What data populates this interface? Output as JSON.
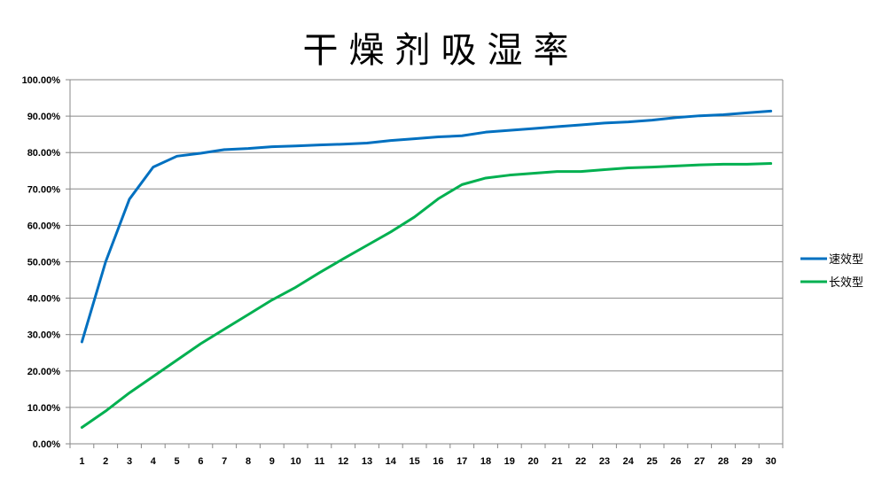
{
  "chart_data": {
    "type": "line",
    "title": "干燥剂吸湿率",
    "xlabel": "",
    "ylabel": "",
    "x": [
      1,
      2,
      3,
      4,
      5,
      6,
      7,
      8,
      9,
      10,
      11,
      12,
      13,
      14,
      15,
      16,
      17,
      18,
      19,
      20,
      21,
      22,
      23,
      24,
      25,
      26,
      27,
      28,
      29,
      30
    ],
    "ylim": [
      0,
      100
    ],
    "y_ticks": [
      "0.00%",
      "10.00%",
      "20.00%",
      "30.00%",
      "40.00%",
      "50.00%",
      "60.00%",
      "70.00%",
      "80.00%",
      "90.00%",
      "100.00%"
    ],
    "grid": true,
    "legend_position": "right",
    "series": [
      {
        "name": "速效型",
        "color": "#0070C0",
        "values": [
          28.0,
          50.0,
          67.2,
          76.0,
          79.0,
          79.8,
          80.8,
          81.1,
          81.6,
          81.8,
          82.1,
          82.3,
          82.6,
          83.3,
          83.8,
          84.3,
          84.6,
          85.6,
          86.1,
          86.6,
          87.1,
          87.6,
          88.1,
          88.4,
          88.9,
          89.6,
          90.1,
          90.4,
          90.9,
          91.4
        ]
      },
      {
        "name": "长效型",
        "color": "#00B050",
        "values": [
          4.5,
          9.0,
          14.0,
          18.5,
          23.0,
          27.5,
          31.5,
          35.5,
          39.5,
          43.0,
          47.0,
          50.8,
          54.5,
          58.2,
          62.3,
          67.3,
          71.2,
          73.0,
          73.8,
          74.3,
          74.8,
          74.8,
          75.3,
          75.8,
          76.0,
          76.3,
          76.6,
          76.8,
          76.8,
          77.0
        ]
      }
    ]
  }
}
